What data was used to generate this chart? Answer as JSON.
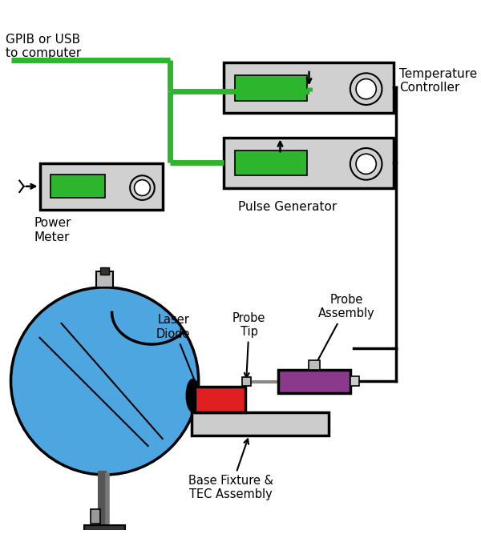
{
  "bg_color": "#ffffff",
  "border_color": "#000000",
  "green_color": "#2db52d",
  "gray_color": "#d0d0d0",
  "blue_color": "#4da6e0",
  "red_color": "#e02020",
  "purple_color": "#8b3a8b",
  "black_color": "#000000",
  "dark_gray": "#555555",
  "labels": {
    "gpib": "GPIB or USB\nto computer",
    "temp_ctrl": "Temperature\nController",
    "power_meter": "Power\nMeter",
    "pulse_gen": "Pulse Generator",
    "laser_diode": "Laser\nDiode",
    "probe_tip": "Probe\nTip",
    "probe_assembly": "Probe\nAssembly",
    "base_fixture": "Base Fixture &\nTEC Assembly"
  }
}
